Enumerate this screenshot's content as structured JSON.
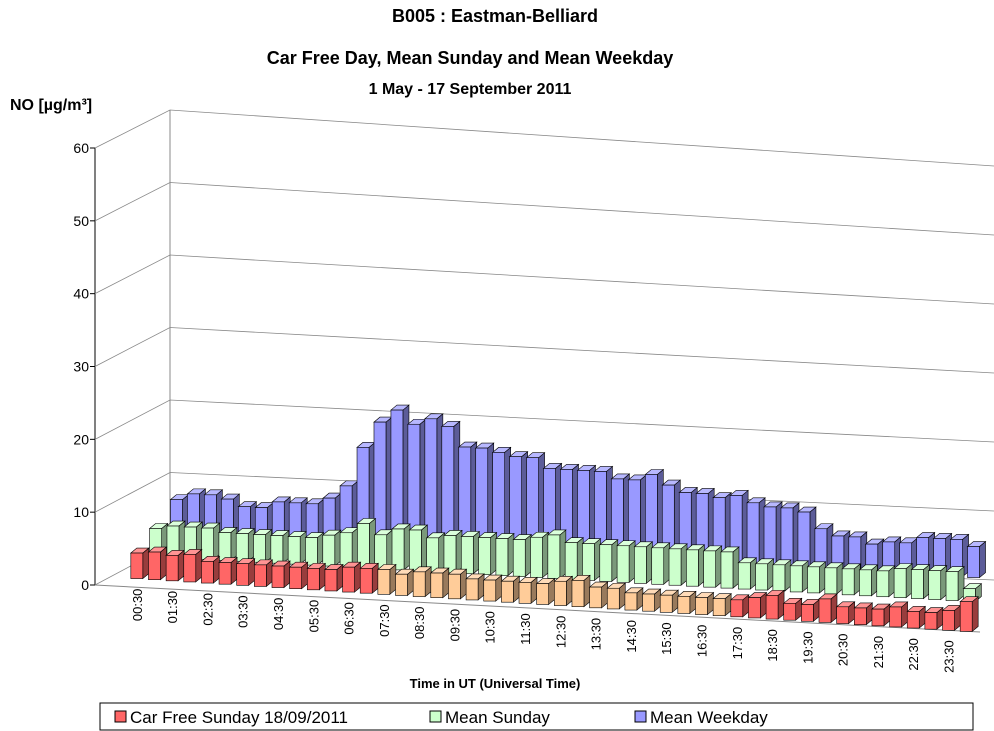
{
  "chart_data": {
    "type": "bar3d",
    "title": [
      "B005 : Eastman-Belliard",
      "Car Free Day, Mean Sunday and Mean Weekday"
    ],
    "subtitle": "1 May - 17 September 2011",
    "y_label": "NO  [µg/m³]",
    "x_label": "Time in UT (Universal Time)",
    "categories": [
      "00:30",
      null,
      "01:30",
      null,
      "02:30",
      null,
      "03:30",
      null,
      "04:30",
      null,
      "05:30",
      null,
      "06:30",
      null,
      "07:30",
      null,
      "08:30",
      null,
      "09:30",
      null,
      "10:30",
      null,
      "11:30",
      null,
      "12:30",
      null,
      "13:30",
      null,
      "14:30",
      null,
      "15:30",
      null,
      "16:30",
      null,
      "17:30",
      null,
      "18:30",
      null,
      "19:30",
      null,
      "20:30",
      null,
      "21:30",
      null,
      "22:30",
      null,
      "23:30",
      null
    ],
    "ylim": [
      0,
      60
    ],
    "yticks": [
      0,
      10,
      20,
      30,
      40,
      50,
      60
    ],
    "grid": true,
    "legend": "bottom",
    "series": [
      {
        "name": "Car Free Sunday 18/09/2011",
        "color": "#ff6666",
        "colors": [
          "#ff6666",
          "#ff6666",
          "#ff6666",
          "#ff6666",
          "#ff6666",
          "#ff6666",
          "#ff6666",
          "#ff6666",
          "#ff6666",
          "#ff6666",
          "#ff6666",
          "#ff6666",
          "#ff6666",
          "#ff6666",
          "#ffcc99",
          "#ffcc99",
          "#ffcc99",
          "#ffcc99",
          "#ffcc99",
          "#ffcc99",
          "#ffcc99",
          "#ffcc99",
          "#ffcc99",
          "#ffcc99",
          "#ffcc99",
          "#ffcc99",
          "#ffcc99",
          "#ffcc99",
          "#ffcc99",
          "#ffcc99",
          "#ffcc99",
          "#ffcc99",
          "#ffcc99",
          "#ffcc99",
          "#ff6666",
          "#ff6666",
          "#ff6666",
          "#ff6666",
          "#ff6666",
          "#ff6666",
          "#ff6666",
          "#ff6666",
          "#ff6666",
          "#ff6666",
          "#ff6666",
          "#ff6666",
          "#ff6666",
          "#ff6666"
        ],
        "values": [
          3.5,
          3.8,
          3.5,
          3.8,
          3,
          3,
          3,
          3,
          3,
          3,
          3,
          3,
          3.5,
          3.5,
          3.5,
          3,
          3.5,
          3.5,
          3.5,
          3,
          3,
          3,
          3,
          3,
          3.5,
          3.8,
          3,
          3,
          2.5,
          2.5,
          2.5,
          2.5,
          2.5,
          2.5,
          2.5,
          3,
          3.5,
          2.5,
          2.5,
          3.5,
          2.5,
          2.5,
          2.5,
          3,
          2.5,
          2.5,
          3,
          4.5
        ]
      },
      {
        "name": "Mean Sunday",
        "color": "#ccffcc",
        "values": [
          4,
          4.5,
          4.5,
          4.5,
          4,
          4,
          4,
          4,
          4,
          4,
          4.5,
          5,
          6.5,
          5,
          6,
          6,
          5,
          5.5,
          5.5,
          5.5,
          5.5,
          5.5,
          6,
          6.5,
          5.5,
          5.5,
          5.5,
          5.5,
          5.5,
          5.5,
          5.5,
          5.5,
          5.5,
          5.5,
          4,
          4,
          4,
          4,
          4,
          4,
          4,
          4,
          4,
          4.5,
          4.5,
          4.5,
          4.5,
          2
        ]
      },
      {
        "name": "Mean Weekday",
        "color": "#9999ff",
        "values": [
          5.5,
          6.5,
          6.5,
          6,
          5,
          5,
          6,
          6,
          6,
          7,
          9,
          15,
          19,
          21,
          19,
          20,
          19,
          16,
          16,
          15.5,
          15,
          15,
          13.5,
          13.5,
          13.5,
          13.5,
          12.5,
          12.5,
          13.5,
          12,
          11,
          11,
          10.5,
          11,
          10,
          9.5,
          9.5,
          9,
          6.5,
          5.5,
          5.5,
          4.5,
          5,
          5,
          6,
          6,
          6,
          5
        ]
      }
    ]
  }
}
